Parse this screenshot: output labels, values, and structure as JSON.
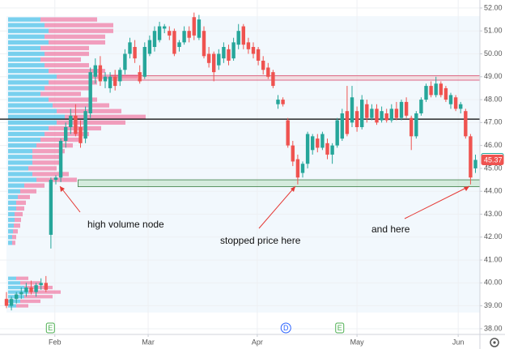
{
  "chart_data": {
    "type": "candlestick",
    "open": [
      39.3,
      39.0,
      39.3,
      39.5,
      39.6,
      39.8,
      39.6,
      39.9,
      40.0,
      42.1,
      44.5,
      44.6,
      46.2,
      46.8,
      47.3,
      46.8,
      46.3,
      47.4,
      49.0,
      49.5,
      48.8,
      48.5,
      49.0,
      48.8,
      49.3,
      50.0,
      50.3,
      49.2,
      49.0,
      50.0,
      50.3,
      50.6,
      51.1,
      51.0,
      51.0,
      50.3,
      50.5,
      51.0,
      51.6,
      50.7,
      51.0,
      50.0,
      50.0,
      49.5,
      49.8,
      50.2,
      49.8,
      50.4,
      51.2,
      50.5,
      50.3,
      50.2,
      49.7,
      49.4,
      49.2,
      47.8,
      48.0,
      47.1,
      46.0,
      45.4,
      44.8,
      45.2,
      45.8,
      46.3,
      45.9,
      46.1,
      45.6,
      46.0,
      46.3,
      47.5,
      47.0,
      47.5,
      46.8,
      47.8,
      47.2,
      47.6,
      47.1,
      47.4,
      47.1,
      47.6,
      47.2,
      47.9,
      47.2,
      46.4,
      47.4,
      48.0,
      48.6,
      48.2,
      48.7,
      48.5,
      47.8,
      48.1,
      47.6,
      47.5,
      46.4,
      45.0
    ],
    "high": [
      39.6,
      39.4,
      39.6,
      39.8,
      40.0,
      40.1,
      40.0,
      40.2,
      40.3,
      44.6,
      44.7,
      46.3,
      47.0,
      47.6,
      47.8,
      47.1,
      47.7,
      49.4,
      49.8,
      49.9,
      49.2,
      49.2,
      49.3,
      49.4,
      50.2,
      50.7,
      50.6,
      49.5,
      50.5,
      50.8,
      51.2,
      51.4,
      51.3,
      51.2,
      51.1,
      50.6,
      51.2,
      51.2,
      51.8,
      51.7,
      51.2,
      50.3,
      50.1,
      50.2,
      50.5,
      50.4,
      50.7,
      51.3,
      51.3,
      50.7,
      50.5,
      50.3,
      49.9,
      49.6,
      49.3,
      48.2,
      48.1,
      47.2,
      46.2,
      45.6,
      45.3,
      46.6,
      46.5,
      46.5,
      46.6,
      46.3,
      46.1,
      47.2,
      47.6,
      48.6,
      48.6,
      47.7,
      48.2,
      48.0,
      47.8,
      47.8,
      47.7,
      47.6,
      47.8,
      47.9,
      48.0,
      48.1,
      47.3,
      47.5,
      48.1,
      48.7,
      48.8,
      49.0,
      48.8,
      48.6,
      48.3,
      48.2,
      47.9,
      47.6,
      46.5,
      45.6
    ],
    "low": [
      38.9,
      38.8,
      39.1,
      39.3,
      39.4,
      39.5,
      39.4,
      39.7,
      39.6,
      41.5,
      44.3,
      44.4,
      45.9,
      46.5,
      46.4,
      45.9,
      46.1,
      47.2,
      48.7,
      48.6,
      48.5,
      48.3,
      48.4,
      48.6,
      49.1,
      49.8,
      49.6,
      48.7,
      48.9,
      49.9,
      50.1,
      50.5,
      50.9,
      50.6,
      49.9,
      50.1,
      50.4,
      50.5,
      50.6,
      50.6,
      49.8,
      49.4,
      48.8,
      49.3,
      49.6,
      49.5,
      49.7,
      50.2,
      50.2,
      50.0,
      49.8,
      49.5,
      49.1,
      48.9,
      48.5,
      47.6,
      47.7,
      45.9,
      45.1,
      44.3,
      44.6,
      45.0,
      45.6,
      45.7,
      45.8,
      45.4,
      45.2,
      45.9,
      46.2,
      46.4,
      46.8,
      46.6,
      46.7,
      47.0,
      47.1,
      46.9,
      47.0,
      47.0,
      47.0,
      47.1,
      47.1,
      47.2,
      45.8,
      46.3,
      47.3,
      47.9,
      48.1,
      48.1,
      48.1,
      47.9,
      47.6,
      47.5,
      47.4,
      46.3,
      44.3,
      44.8
    ],
    "close": [
      39.0,
      39.3,
      39.5,
      39.6,
      39.8,
      39.6,
      39.9,
      40.0,
      39.7,
      44.5,
      44.6,
      46.2,
      46.8,
      47.3,
      46.5,
      46.1,
      47.5,
      49.2,
      49.5,
      48.8,
      49.0,
      49.0,
      48.6,
      49.3,
      50.0,
      50.5,
      49.8,
      48.8,
      50.3,
      50.6,
      51.0,
      51.2,
      51.2,
      50.8,
      50.0,
      50.5,
      51.0,
      50.7,
      50.8,
      51.5,
      49.9,
      49.6,
      49.2,
      50.0,
      50.3,
      49.7,
      50.5,
      51.0,
      50.4,
      50.2,
      50.0,
      49.7,
      49.3,
      49.0,
      48.6,
      48.0,
      47.8,
      46.0,
      45.3,
      44.6,
      45.2,
      46.5,
      46.4,
      45.9,
      46.5,
      45.6,
      46.0,
      47.1,
      47.4,
      46.5,
      48.1,
      46.8,
      48.0,
      47.2,
      47.6,
      47.0,
      47.5,
      47.1,
      47.6,
      47.2,
      47.9,
      47.3,
      46.4,
      47.4,
      48.0,
      48.6,
      48.2,
      48.7,
      48.2,
      48.0,
      48.2,
      47.6,
      47.8,
      46.4,
      44.6,
      45.37
    ],
    "up_color": "#26a69a",
    "down_color": "#ef5350",
    "xlim": [
      -1.31,
      95.9
    ],
    "xticks": [
      {
        "value": 9.8,
        "label": "Feb"
      },
      {
        "value": 28.7,
        "label": "Mar"
      },
      {
        "value": 50.8,
        "label": "Apr"
      },
      {
        "value": 71,
        "label": "May"
      },
      {
        "value": 91.5,
        "label": "Jun"
      }
    ],
    "ylim": [
      37.68,
      52.35
    ],
    "yticks": [
      {
        "value": 38,
        "label": "38.00"
      },
      {
        "value": 39,
        "label": "39.00"
      },
      {
        "value": 40,
        "label": "40.00"
      },
      {
        "value": 41,
        "label": "41.00"
      },
      {
        "value": 42,
        "label": "42.00"
      },
      {
        "value": 43,
        "label": "43.00"
      },
      {
        "value": 44,
        "label": "44.00"
      },
      {
        "value": 45,
        "label": "45.00"
      },
      {
        "value": 46,
        "label": "46.00"
      },
      {
        "value": 47,
        "label": "47.00"
      },
      {
        "value": 48,
        "label": "48.00"
      },
      {
        "value": 49,
        "label": "49.00"
      },
      {
        "value": 50,
        "label": "50.00"
      },
      {
        "value": 51,
        "label": "51.00"
      },
      {
        "value": 52,
        "label": "52.00"
      }
    ],
    "grid": true,
    "volume_profiles": [
      {
        "step": 0.25,
        "up_color": "#4fc3e8",
        "down_color": "#f06292",
        "levels": [
          51.5,
          51.25,
          51.0,
          50.75,
          50.5,
          50.25,
          50.0,
          49.75,
          49.5,
          49.25,
          49.0,
          48.75,
          48.5,
          48.25,
          48.0,
          47.75,
          47.5,
          47.25,
          47.0,
          46.75,
          46.5,
          46.25,
          46.0,
          45.75,
          45.5,
          45.25,
          45.0,
          44.75,
          44.5,
          44.25,
          44.0,
          43.75,
          43.5,
          43.25,
          43.0,
          42.75,
          42.5,
          42.25,
          42.0,
          41.75
        ],
        "up": [
          40,
          45,
          50,
          45,
          50,
          40,
          45,
          40,
          45,
          50,
          60,
          50,
          45,
          40,
          50,
          55,
          60,
          70,
          60,
          50,
          45,
          40,
          35,
          30,
          30,
          30,
          25,
          30,
          35,
          20,
          15,
          12,
          10,
          10,
          8,
          8,
          7,
          6,
          5,
          5
        ],
        "down": [
          70,
          85,
          80,
          75,
          70,
          60,
          55,
          50,
          55,
          70,
          100,
          60,
          55,
          50,
          60,
          70,
          80,
          100,
          85,
          65,
          55,
          50,
          45,
          40,
          35,
          35,
          35,
          45,
          50,
          25,
          20,
          15,
          12,
          10,
          10,
          8,
          8,
          6,
          5,
          4
        ]
      },
      {
        "step": 0.2,
        "up_color": "#4fc3e8",
        "down_color": "#f06292",
        "levels": [
          40.2,
          40.0,
          39.8,
          39.6,
          39.4,
          39.2,
          39.0
        ],
        "up": [
          10,
          15,
          20,
          25,
          20,
          15,
          10
        ],
        "down": [
          15,
          25,
          35,
          40,
          35,
          25,
          15
        ]
      }
    ],
    "level_line": 47.15,
    "zones": [
      {
        "low": 48.85,
        "high": 49.05,
        "from": 21.0
      },
      {
        "low": 44.2,
        "high": 44.5,
        "from": 14.5
      }
    ],
    "price_labels": [
      {
        "value": 45.44,
        "style": "outline",
        "color": "#26a69a"
      },
      {
        "value": 45.37,
        "style": "filled",
        "color": "#ef5350"
      }
    ],
    "events": [
      {
        "label": "E",
        "x": 8.9
      },
      {
        "label": "D",
        "x": 56.6
      },
      {
        "label": "E",
        "x": 67.5
      }
    ],
    "annotations": [
      "high volume node",
      "stopped price here",
      "and here"
    ]
  }
}
